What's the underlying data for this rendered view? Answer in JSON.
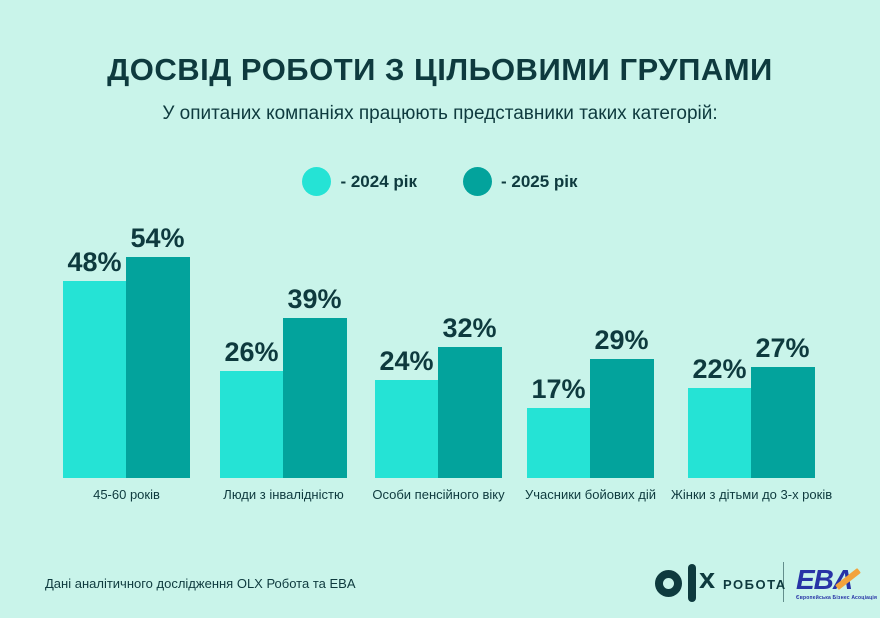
{
  "title": "ДОСВІД РОБОТИ З ЦІЛЬОВИМИ ГРУПАМИ",
  "subtitle": "У опитаних компаніях працюють представники таких категорій:",
  "legend": [
    {
      "label": "- 2024 рік",
      "color": "#25e3d5"
    },
    {
      "label": "- 2025 рік",
      "color": "#03a39c"
    }
  ],
  "chart_data": {
    "type": "bar",
    "categories": [
      "45-60 років",
      "Люди з інвалідністю",
      "Особи пенсійного віку",
      "Учасники бойових дій",
      "Жінки з дітьми до 3-х років"
    ],
    "series": [
      {
        "name": "2024 рік",
        "color": "#25e3d5",
        "values": [
          48,
          26,
          24,
          17,
          22
        ]
      },
      {
        "name": "2025 рік",
        "color": "#03a39c",
        "values": [
          54,
          39,
          32,
          29,
          27
        ]
      }
    ],
    "value_suffix": "%",
    "title": "ДОСВІД РОБОТИ З ЦІЛЬОВИМИ ГРУПАМИ",
    "xlabel": "",
    "ylabel": "",
    "ylim": [
      0,
      60
    ],
    "grid": false,
    "legend_position": "top"
  },
  "footer": {
    "source": "Дані аналітичного дослідження OLX Робота та EBA",
    "olx_word": "РОБОТА",
    "olx_x": "x",
    "eba_text": "EBA",
    "eba_subtext": "Європейська Бізнес Асоціація"
  },
  "colors": {
    "background": "#c9f4ea",
    "bar_2024": "#25e3d5",
    "bar_2025": "#03a39c",
    "text": "#0e3a3e",
    "eba_blue": "#2733a6",
    "eba_orange": "#f2a33c"
  }
}
